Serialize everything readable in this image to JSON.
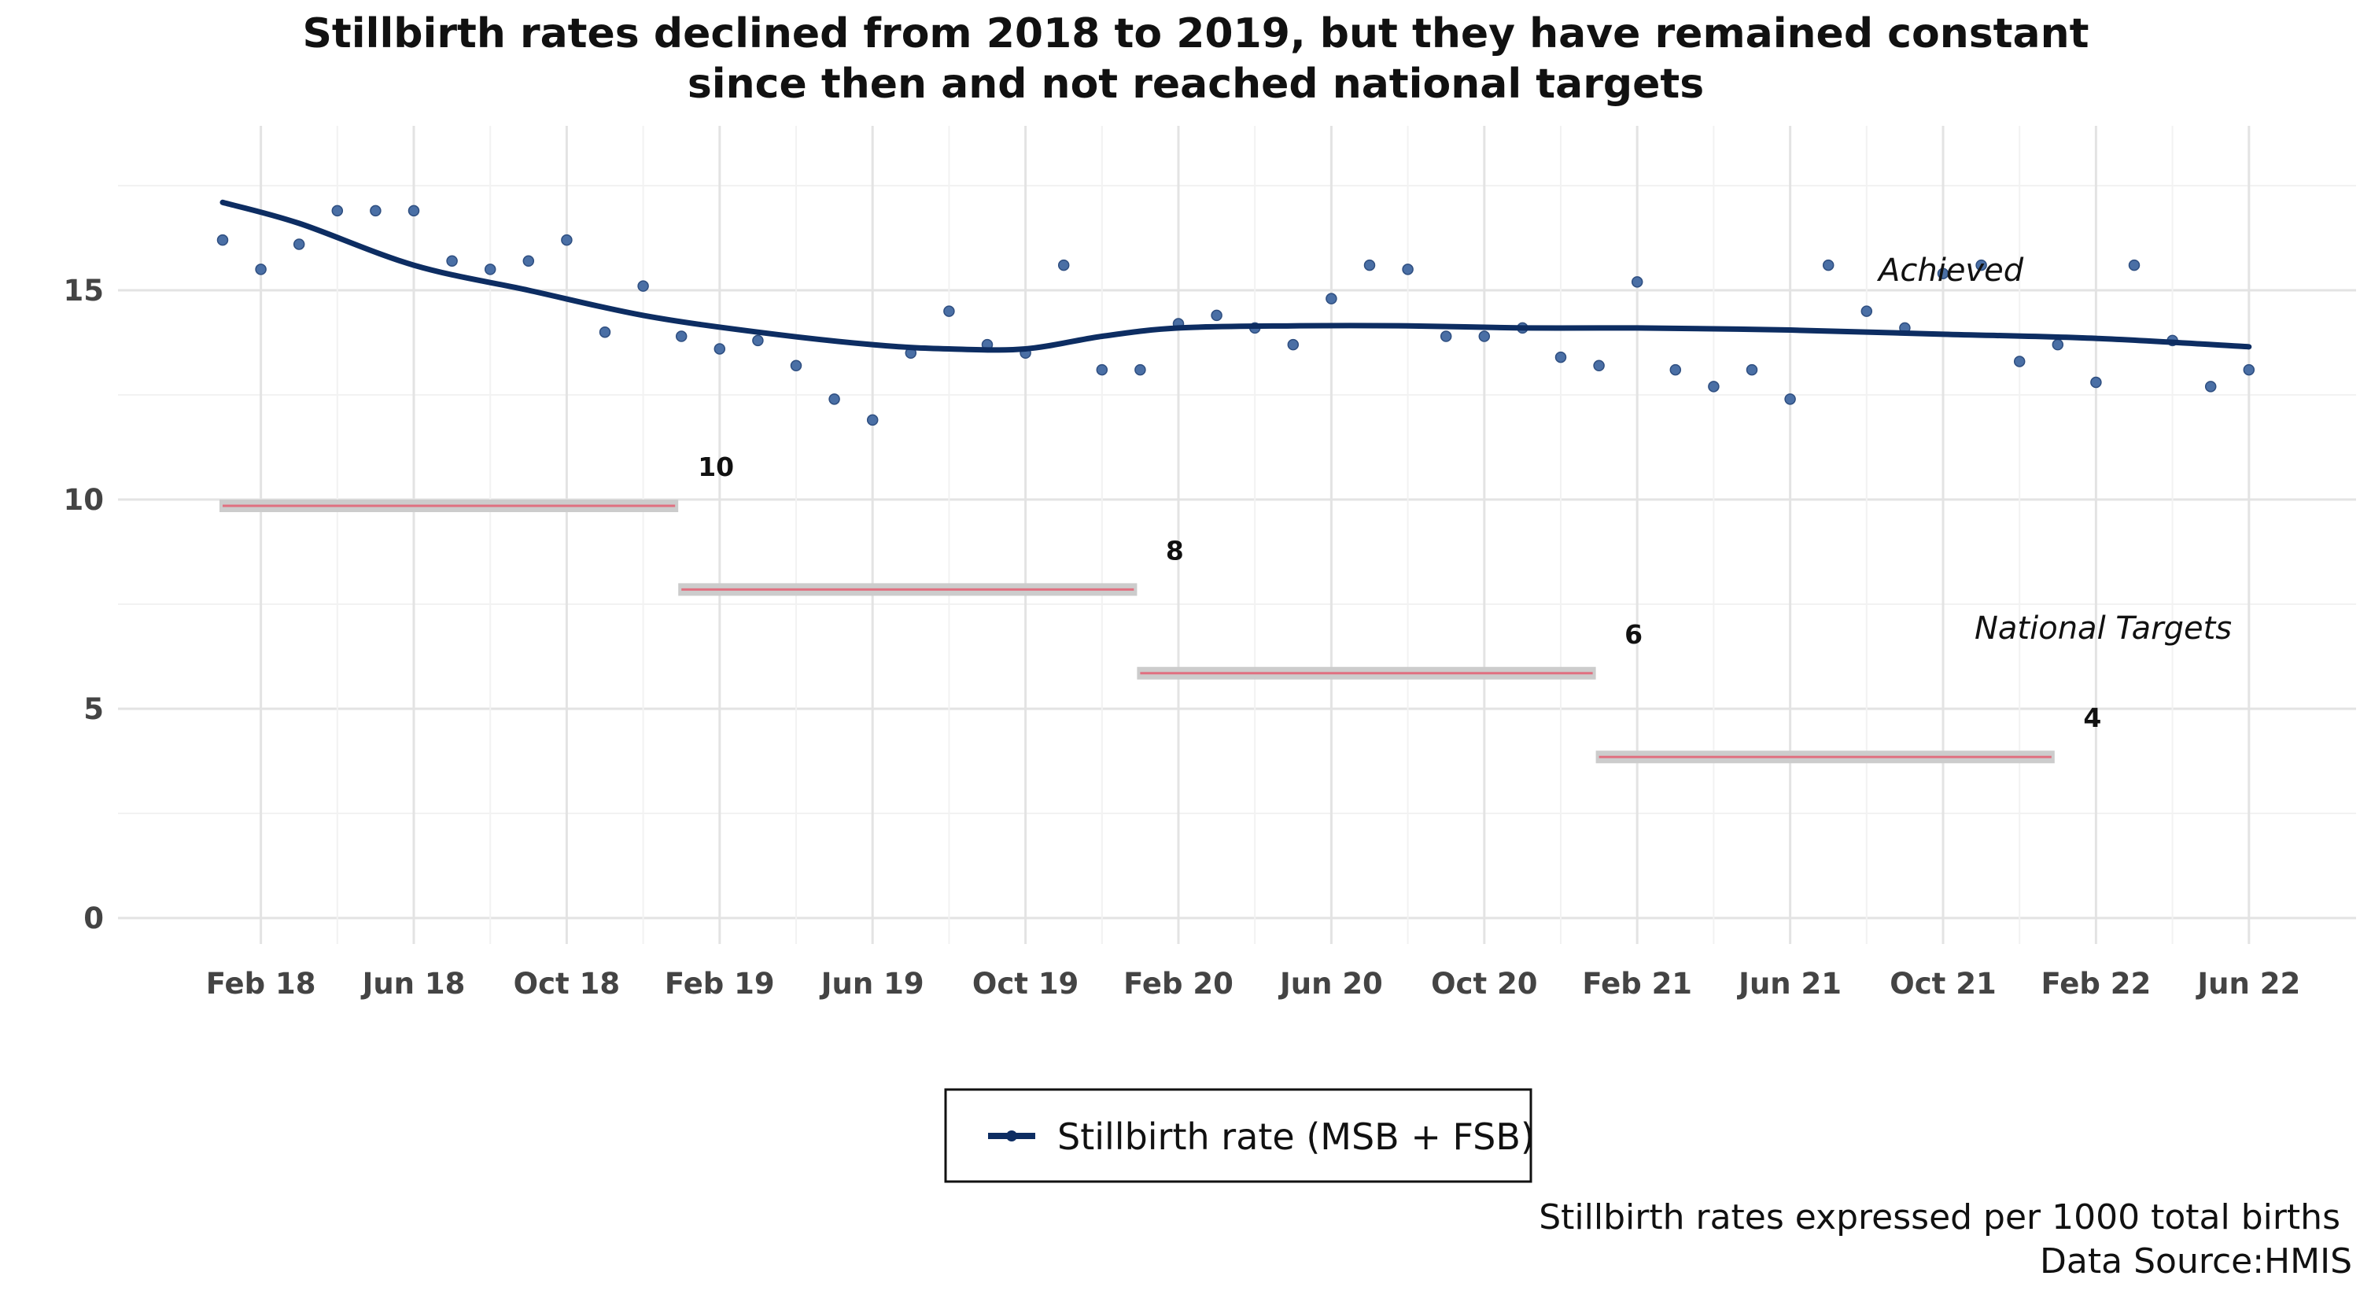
{
  "chart_data": {
    "type": "line",
    "title_lines": [
      "Stillbirth rates declined from 2018 to 2019, but they have remained constant",
      "since then and not reached national targets"
    ],
    "xlabel": "",
    "ylabel": "",
    "y_ticks": [
      0,
      5,
      10,
      15
    ],
    "ylim": [
      0,
      18
    ],
    "x_range": [
      "2018-01",
      "2022-06"
    ],
    "x_ticks": [
      {
        "month": "2018-02",
        "label": "Feb 18"
      },
      {
        "month": "2018-06",
        "label": "Jun 18"
      },
      {
        "month": "2018-10",
        "label": "Oct 18"
      },
      {
        "month": "2019-02",
        "label": "Feb 19"
      },
      {
        "month": "2019-06",
        "label": "Jun 19"
      },
      {
        "month": "2019-10",
        "label": "Oct 19"
      },
      {
        "month": "2020-02",
        "label": "Feb 20"
      },
      {
        "month": "2020-06",
        "label": "Jun 20"
      },
      {
        "month": "2020-10",
        "label": "Oct 20"
      },
      {
        "month": "2021-02",
        "label": "Feb 21"
      },
      {
        "month": "2021-06",
        "label": "Jun 21"
      },
      {
        "month": "2021-10",
        "label": "Oct 21"
      },
      {
        "month": "2022-02",
        "label": "Feb 22"
      },
      {
        "month": "2022-06",
        "label": "Jun 22"
      }
    ],
    "grid": true,
    "points": {
      "color": "#4a6fa5",
      "values": [
        {
          "month": "2018-01",
          "y": 16.2
        },
        {
          "month": "2018-02",
          "y": 15.5
        },
        {
          "month": "2018-03",
          "y": 16.1
        },
        {
          "month": "2018-04",
          "y": 16.9
        },
        {
          "month": "2018-05",
          "y": 16.9
        },
        {
          "month": "2018-06",
          "y": 16.9
        },
        {
          "month": "2018-07",
          "y": 15.7
        },
        {
          "month": "2018-08",
          "y": 15.5
        },
        {
          "month": "2018-09",
          "y": 15.7
        },
        {
          "month": "2018-10",
          "y": 16.2
        },
        {
          "month": "2018-11",
          "y": 14.0
        },
        {
          "month": "2018-12",
          "y": 15.1
        },
        {
          "month": "2019-01",
          "y": 13.9
        },
        {
          "month": "2019-02",
          "y": 13.6
        },
        {
          "month": "2019-03",
          "y": 13.8
        },
        {
          "month": "2019-04",
          "y": 13.2
        },
        {
          "month": "2019-05",
          "y": 12.4
        },
        {
          "month": "2019-06",
          "y": 11.9
        },
        {
          "month": "2019-07",
          "y": 13.5
        },
        {
          "month": "2019-08",
          "y": 14.5
        },
        {
          "month": "2019-09",
          "y": 13.7
        },
        {
          "month": "2019-10",
          "y": 13.5
        },
        {
          "month": "2019-11",
          "y": 15.6
        },
        {
          "month": "2019-12",
          "y": 13.1
        },
        {
          "month": "2020-01",
          "y": 13.1
        },
        {
          "month": "2020-02",
          "y": 14.2
        },
        {
          "month": "2020-03",
          "y": 14.4
        },
        {
          "month": "2020-04",
          "y": 14.1
        },
        {
          "month": "2020-05",
          "y": 13.7
        },
        {
          "month": "2020-06",
          "y": 14.8
        },
        {
          "month": "2020-07",
          "y": 15.6
        },
        {
          "month": "2020-08",
          "y": 15.5
        },
        {
          "month": "2020-09",
          "y": 13.9
        },
        {
          "month": "2020-10",
          "y": 13.9
        },
        {
          "month": "2020-11",
          "y": 14.1
        },
        {
          "month": "2020-12",
          "y": 13.4
        },
        {
          "month": "2021-01",
          "y": 13.2
        },
        {
          "month": "2021-02",
          "y": 15.2
        },
        {
          "month": "2021-03",
          "y": 13.1
        },
        {
          "month": "2021-04",
          "y": 12.7
        },
        {
          "month": "2021-05",
          "y": 13.1
        },
        {
          "month": "2021-06",
          "y": 12.4
        },
        {
          "month": "2021-07",
          "y": 15.6
        },
        {
          "month": "2021-08",
          "y": 14.5
        },
        {
          "month": "2021-09",
          "y": 14.1
        },
        {
          "month": "2021-10",
          "y": 15.4
        },
        {
          "month": "2021-11",
          "y": 15.6
        },
        {
          "month": "2021-12",
          "y": 13.3
        },
        {
          "month": "2022-01",
          "y": 13.7
        },
        {
          "month": "2022-02",
          "y": 12.8
        },
        {
          "month": "2022-03",
          "y": 15.6
        },
        {
          "month": "2022-04",
          "y": 13.8
        },
        {
          "month": "2022-05",
          "y": 12.7
        },
        {
          "month": "2022-06",
          "y": 13.1
        }
      ]
    },
    "trend": {
      "name": "Stillbirth rate (MSB + FSB)",
      "color": "#0d2d62",
      "values": [
        {
          "month": "2018-01",
          "y": 17.1
        },
        {
          "month": "2018-03",
          "y": 16.6
        },
        {
          "month": "2018-06",
          "y": 15.6
        },
        {
          "month": "2018-09",
          "y": 15.0
        },
        {
          "month": "2018-12",
          "y": 14.4
        },
        {
          "month": "2019-03",
          "y": 14.0
        },
        {
          "month": "2019-06",
          "y": 13.7
        },
        {
          "month": "2019-08",
          "y": 13.6
        },
        {
          "month": "2019-10",
          "y": 13.6
        },
        {
          "month": "2019-12",
          "y": 13.9
        },
        {
          "month": "2020-02",
          "y": 14.1
        },
        {
          "month": "2020-05",
          "y": 14.15
        },
        {
          "month": "2020-08",
          "y": 14.15
        },
        {
          "month": "2020-11",
          "y": 14.1
        },
        {
          "month": "2021-02",
          "y": 14.1
        },
        {
          "month": "2021-06",
          "y": 14.05
        },
        {
          "month": "2021-10",
          "y": 13.95
        },
        {
          "month": "2022-02",
          "y": 13.85
        },
        {
          "month": "2022-06",
          "y": 13.65
        }
      ]
    },
    "targets": [
      {
        "start": "2018-01",
        "end": "2019-01",
        "y": 10,
        "label": "10"
      },
      {
        "start": "2019-01",
        "end": "2020-01",
        "y": 8,
        "label": "8"
      },
      {
        "start": "2020-01",
        "end": "2021-01",
        "y": 6,
        "label": "6"
      },
      {
        "start": "2021-01",
        "end": "2022-01",
        "y": 4,
        "label": "4"
      }
    ],
    "annotations": {
      "achieved": "Achieved",
      "national_targets": "National Targets"
    },
    "legend": {
      "placement": "bottom-center",
      "entries": [
        "Stillbirth rate (MSB + FSB)"
      ]
    },
    "caption_lines": [
      "Stillbirth rates expressed per 1000 total births",
      "Data Source:HMIS"
    ],
    "target_band_color": "#cccccc",
    "target_line_color": "#e07080"
  }
}
